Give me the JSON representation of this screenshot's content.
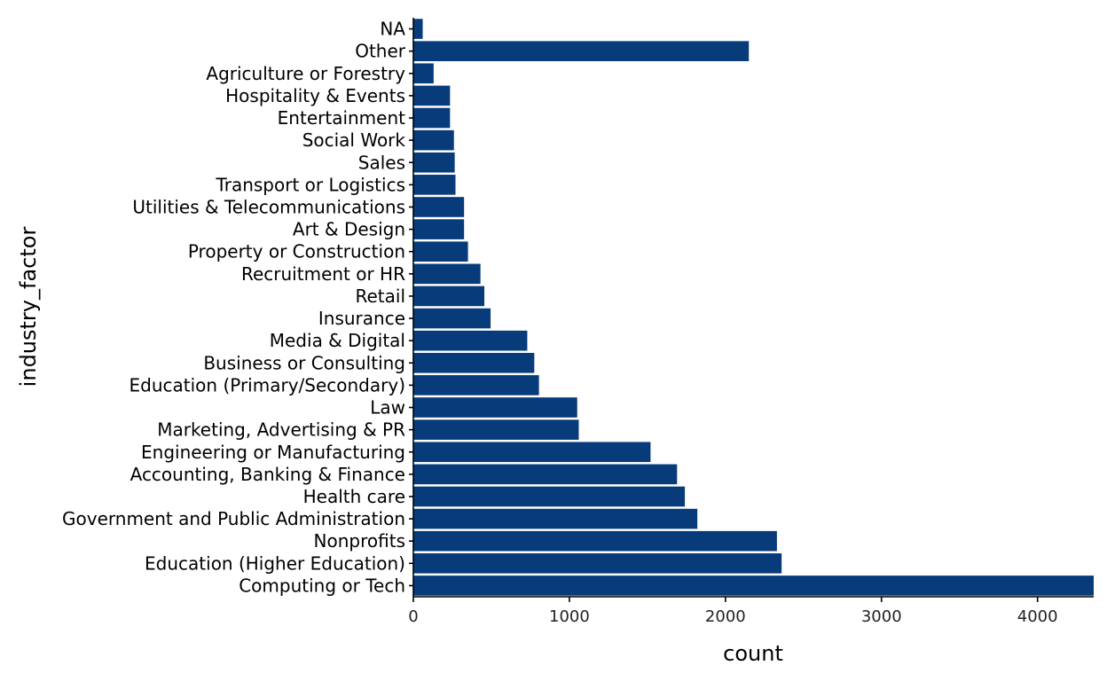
{
  "chart_data": {
    "type": "bar",
    "orientation": "horizontal",
    "xlabel": "count",
    "ylabel": "industry_factor",
    "xlim": [
      0,
      4360
    ],
    "xticks": [
      0,
      1000,
      2000,
      3000,
      4000
    ],
    "grid": false,
    "bar_color": "#073B79",
    "categories": [
      "NA",
      "Other",
      "Agriculture or Forestry",
      "Hospitality & Events",
      "Entertainment",
      "Social Work",
      "Sales",
      "Transport or Logistics",
      "Utilities & Telecommunications",
      "Art & Design",
      "Property or Construction",
      "Recruitment or HR",
      "Retail",
      "Insurance",
      "Media & Digital",
      "Business or Consulting",
      "Education (Primary/Secondary)",
      "Law",
      "Marketing, Advertising & PR",
      "Engineering or Manufacturing",
      "Accounting, Banking & Finance",
      "Health care",
      "Government and Public Administration",
      "Nonprofits",
      "Education (Higher Education)",
      "Computing or Tech"
    ],
    "values": [
      60,
      2150,
      130,
      235,
      235,
      260,
      265,
      270,
      325,
      325,
      350,
      430,
      455,
      495,
      730,
      775,
      805,
      1050,
      1060,
      1520,
      1690,
      1740,
      1820,
      2330,
      2360,
      4360
    ]
  }
}
